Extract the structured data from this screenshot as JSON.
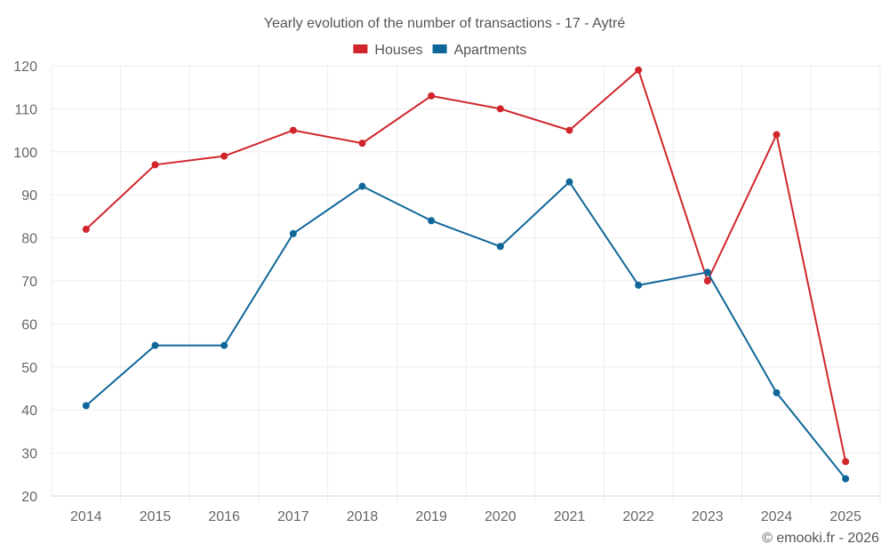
{
  "chart_data": {
    "type": "line",
    "title": "Yearly evolution of the number of transactions - 17 - Aytré",
    "xlabel": "",
    "ylabel": "",
    "categories": [
      "2014",
      "2015",
      "2016",
      "2017",
      "2018",
      "2019",
      "2020",
      "2021",
      "2022",
      "2023",
      "2024",
      "2025"
    ],
    "ylim": [
      20,
      120
    ],
    "yticks": [
      20,
      30,
      40,
      50,
      60,
      70,
      80,
      90,
      100,
      110,
      120
    ],
    "grid": true,
    "legend_position": "top-center",
    "series": [
      {
        "name": "Houses",
        "color": "#d0262b",
        "values": [
          82,
          97,
          99,
          105,
          102,
          113,
          110,
          105,
          119,
          70,
          104,
          28
        ]
      },
      {
        "name": "Apartments",
        "color": "#0f6699",
        "values": [
          41,
          55,
          55,
          81,
          92,
          84,
          78,
          93,
          69,
          72,
          44,
          24
        ]
      }
    ]
  },
  "credit": "© emooki.fr - 2026",
  "colors": {
    "text": "#555555",
    "axis_text": "#666666",
    "grid": "#ececec"
  }
}
